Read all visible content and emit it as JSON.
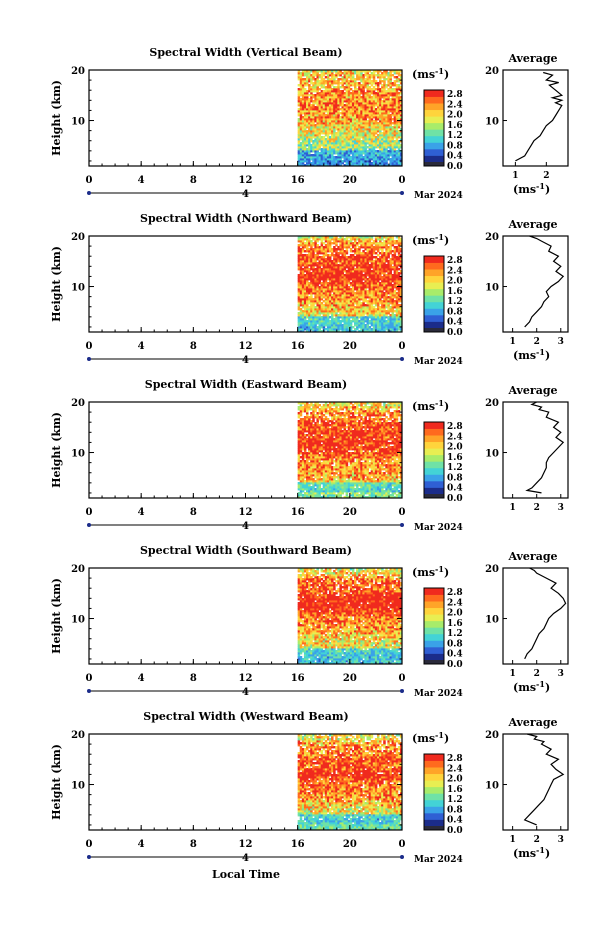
{
  "figure": {
    "bottom_xlabel": "Local Time",
    "date_label": "Mar 2024",
    "y_label": "Height (km)",
    "cbar_unit": "(ms",
    "cbar_unit_sup": "-1",
    "cbar_unit_tail": ")",
    "cbar_ticks": [
      "2.8",
      "2.4",
      "2.0",
      "1.6",
      "1.2",
      "0.8",
      "0.4",
      "0.0"
    ],
    "time_ticks": [
      "0",
      "4",
      "8",
      "12",
      "16",
      "20",
      "0"
    ],
    "day_marker": "4",
    "y_ticks": [
      "20",
      "10"
    ],
    "avg_title": "Average",
    "avg_xlabel": "(ms",
    "avg_xlabel_sup": "-1",
    "avg_xlabel_tail": ")",
    "colorscale": [
      "#1b2c8a",
      "#2f5fd4",
      "#3aa2e8",
      "#43d3d6",
      "#6fe2a6",
      "#a8ec6a",
      "#e8ee52",
      "#ffd43c",
      "#ffa428",
      "#ff6a1e",
      "#f02a1e"
    ]
  },
  "chart_data": [
    {
      "type": "heatmap",
      "title": "Spectral Width (Vertical Beam)",
      "xlabel": "",
      "ylabel": "Height (km)",
      "xlim": [
        0,
        24
      ],
      "ylim": [
        1,
        20
      ],
      "clim": [
        0,
        3.0
      ],
      "data_start_hour": 16,
      "avg_profile": {
        "type": "line",
        "title": "Average",
        "xlabel": "(ms-1)",
        "xticks": [
          "1",
          "2"
        ],
        "xlim": [
          0.6,
          2.7
        ],
        "x": [
          1.0,
          1.3,
          1.4,
          1.5,
          1.6,
          1.8,
          1.9,
          2.0,
          2.2,
          2.3,
          2.4,
          2.5,
          2.3,
          2.5,
          2.2,
          2.5,
          2.3,
          2.1,
          2.4,
          2.0,
          2.2,
          1.9
        ],
        "y": [
          2,
          3,
          4,
          5,
          6,
          7,
          8,
          9,
          10,
          11,
          12,
          13,
          13.5,
          14,
          14.5,
          15,
          16,
          17,
          17.5,
          18,
          19,
          19.5
        ]
      }
    },
    {
      "type": "heatmap",
      "title": "Spectral Width (Northward Beam)",
      "xlabel": "",
      "ylabel": "Height (km)",
      "xlim": [
        0,
        24
      ],
      "ylim": [
        1,
        20
      ],
      "clim": [
        0,
        3.0
      ],
      "data_start_hour": 16,
      "avg_profile": {
        "type": "line",
        "title": "Average",
        "xlabel": "(ms-1)",
        "xticks": [
          "1",
          "2",
          "3"
        ],
        "xlim": [
          0.6,
          3.3
        ],
        "x": [
          1.5,
          1.7,
          1.8,
          2.0,
          2.2,
          2.3,
          2.5,
          2.4,
          2.6,
          2.9,
          3.0,
          3.1,
          2.8,
          3.0,
          2.7,
          2.9,
          2.5,
          2.6,
          2.2,
          2.0,
          1.7
        ],
        "y": [
          2,
          3,
          4,
          5,
          6,
          7,
          8,
          9,
          10,
          11,
          11.5,
          12,
          13,
          14,
          15,
          16,
          17,
          18,
          19,
          19.5,
          20
        ]
      }
    },
    {
      "type": "heatmap",
      "title": "Spectral Width (Eastward Beam)",
      "xlabel": "",
      "ylabel": "Height (km)",
      "xlim": [
        0,
        24
      ],
      "ylim": [
        1,
        20
      ],
      "clim": [
        0,
        3.0
      ],
      "data_start_hour": 16,
      "avg_profile": {
        "type": "line",
        "title": "Average",
        "xlabel": "",
        "xticks": [
          "1",
          "2",
          "3"
        ],
        "xlim": [
          0.6,
          3.3
        ],
        "x": [
          2.2,
          1.6,
          1.8,
          2.0,
          2.2,
          2.3,
          2.4,
          2.4,
          2.5,
          2.7,
          3.1,
          2.8,
          3.0,
          2.7,
          2.9,
          2.4,
          2.5,
          2.1,
          2.2,
          1.8,
          2.0
        ],
        "y": [
          2,
          2.5,
          3,
          4,
          5,
          6,
          7,
          8,
          9,
          10,
          12,
          13,
          14,
          15,
          16,
          17,
          18,
          18.5,
          19,
          19.5,
          20
        ]
      }
    },
    {
      "type": "heatmap",
      "title": "Spectral Width (Southward Beam)",
      "xlabel": "",
      "ylabel": "Height (km)",
      "xlim": [
        0,
        24
      ],
      "ylim": [
        1,
        20
      ],
      "clim": [
        0,
        3.0
      ],
      "data_start_hour": 16,
      "avg_profile": {
        "type": "line",
        "title": "Average",
        "xlabel": "(ms-1)",
        "xticks": [
          "1",
          "2",
          "3"
        ],
        "xlim": [
          0.6,
          3.3
        ],
        "x": [
          1.5,
          1.6,
          1.8,
          1.9,
          2.0,
          2.1,
          2.3,
          2.4,
          2.5,
          2.7,
          3.0,
          3.2,
          3.1,
          2.9,
          2.6,
          2.8,
          2.4,
          2.2,
          2.0,
          1.9,
          1.7
        ],
        "y": [
          2,
          3,
          4,
          5,
          6,
          7,
          8,
          9,
          10,
          11,
          12,
          13,
          14,
          15,
          16,
          17,
          18,
          18.5,
          19,
          19.5,
          20
        ]
      }
    },
    {
      "type": "heatmap",
      "title": "Spectral Width (Westward Beam)",
      "xlabel": "Local Time",
      "ylabel": "Height (km)",
      "xlim": [
        0,
        24
      ],
      "ylim": [
        1,
        20
      ],
      "clim": [
        0,
        3.0
      ],
      "data_start_hour": 16,
      "avg_profile": {
        "type": "line",
        "title": "Average",
        "xlabel": "(ms-1)",
        "xticks": [
          "1",
          "2",
          "3"
        ],
        "xlim": [
          0.6,
          3.3
        ],
        "x": [
          2.0,
          1.5,
          1.7,
          1.9,
          2.1,
          2.3,
          2.4,
          2.5,
          2.6,
          2.7,
          3.1,
          2.8,
          2.6,
          2.9,
          2.4,
          2.6,
          2.2,
          2.3,
          1.9,
          2.0,
          1.6
        ],
        "y": [
          2,
          3,
          4,
          5,
          6,
          7,
          8,
          9,
          10,
          11,
          12,
          13,
          14,
          15,
          16,
          17,
          18,
          18.5,
          19,
          19.5,
          20
        ]
      }
    }
  ]
}
